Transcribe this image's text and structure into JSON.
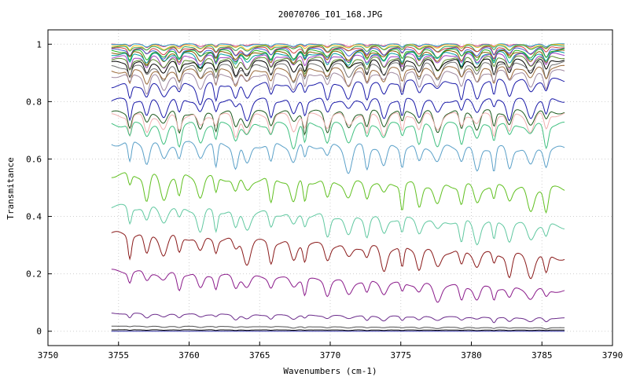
{
  "chart_data": {
    "type": "line",
    "title": "20070706_I01_168.JPG",
    "xlabel": "Wavenumbers (cm-1)",
    "ylabel": "Transmitance",
    "xlim": [
      3750,
      3790
    ],
    "ylim": [
      -0.05,
      1.05
    ],
    "x_range_data": [
      3754.5,
      3786.6
    ],
    "xticks": [
      3750,
      3755,
      3760,
      3765,
      3770,
      3775,
      3780,
      3785,
      3790
    ],
    "yticks": [
      0,
      0.2,
      0.4,
      0.6,
      0.8,
      1
    ],
    "ytick_labels": [
      "0",
      "0.2",
      "0.4",
      "0.6",
      "0.8",
      "1"
    ],
    "grid": true,
    "legend": "none",
    "absorption_lines": [
      3755.8,
      3757.0,
      3758.2,
      3759.3,
      3760.8,
      3761.9,
      3763.3,
      3764.1,
      3765.8,
      3767.4,
      3768.2,
      3769.8,
      3771.3,
      3772.6,
      3773.8,
      3775.1,
      3776.3,
      3777.6,
      3779.3,
      3780.4,
      3781.6,
      3782.7,
      3784.2,
      3785.3
    ],
    "series": [
      {
        "start": 1.0,
        "end": 1.0,
        "depth": 0.01,
        "color": "#e0407a"
      },
      {
        "start": 1.0,
        "end": 1.0,
        "depth": 0.012,
        "color": "#2ca8c8"
      },
      {
        "start": 0.995,
        "end": 0.998,
        "depth": 0.015,
        "color": "#f0c020"
      },
      {
        "start": 0.99,
        "end": 0.995,
        "depth": 0.02,
        "color": "#30a050"
      },
      {
        "start": 0.985,
        "end": 0.99,
        "depth": 0.025,
        "color": "#d04040"
      },
      {
        "start": 0.98,
        "end": 0.985,
        "depth": 0.03,
        "color": "#4060d0"
      },
      {
        "start": 0.975,
        "end": 0.98,
        "depth": 0.035,
        "color": "#20b020"
      },
      {
        "start": 0.97,
        "end": 0.975,
        "depth": 0.035,
        "color": "#8a5a00"
      },
      {
        "start": 0.965,
        "end": 0.97,
        "depth": 0.04,
        "color": "#00a0a0"
      },
      {
        "start": 0.955,
        "end": 0.965,
        "depth": 0.04,
        "color": "#a040c0"
      },
      {
        "start": 0.945,
        "end": 0.955,
        "depth": 0.045,
        "color": "#5a8a2a"
      },
      {
        "start": 0.935,
        "end": 0.945,
        "depth": 0.045,
        "color": "#000000"
      },
      {
        "start": 0.92,
        "end": 0.935,
        "depth": 0.05,
        "color": "#707070"
      },
      {
        "start": 0.905,
        "end": 0.92,
        "depth": 0.05,
        "color": "#9a6a3a"
      },
      {
        "start": 0.89,
        "end": 0.905,
        "depth": 0.055,
        "color": "#a08aa0"
      },
      {
        "start": 0.855,
        "end": 0.875,
        "depth": 0.06,
        "color": "#1a1aa8"
      },
      {
        "start": 0.805,
        "end": 0.805,
        "depth": 0.06,
        "color": "#1a1aa8"
      },
      {
        "start": 0.76,
        "end": 0.765,
        "depth": 0.065,
        "color": "#1e5a1e"
      },
      {
        "start": 0.75,
        "end": 0.755,
        "depth": 0.065,
        "color": "#f0b0b0"
      },
      {
        "start": 0.72,
        "end": 0.72,
        "depth": 0.07,
        "color": "#40c080"
      },
      {
        "start": 0.655,
        "end": 0.635,
        "depth": 0.08,
        "color": "#5aa0c8"
      },
      {
        "start": 0.545,
        "end": 0.495,
        "depth": 0.08,
        "color": "#60c020"
      },
      {
        "start": 0.435,
        "end": 0.365,
        "depth": 0.07,
        "color": "#60c8a0"
      },
      {
        "start": 0.34,
        "end": 0.255,
        "depth": 0.07,
        "color": "#8a1a1a"
      },
      {
        "start": 0.21,
        "end": 0.14,
        "depth": 0.05,
        "color": "#8a1a8a"
      },
      {
        "start": 0.062,
        "end": 0.045,
        "depth": 0.015,
        "color": "#6a2a8a"
      },
      {
        "start": 0.018,
        "end": 0.012,
        "depth": 0.004,
        "color": "#505050"
      },
      {
        "start": 0.005,
        "end": 0.004,
        "depth": 0.002,
        "color": "#000000"
      },
      {
        "start": 0.0,
        "end": 0.0,
        "depth": 0.0,
        "color": "#2a2aa0"
      }
    ]
  }
}
